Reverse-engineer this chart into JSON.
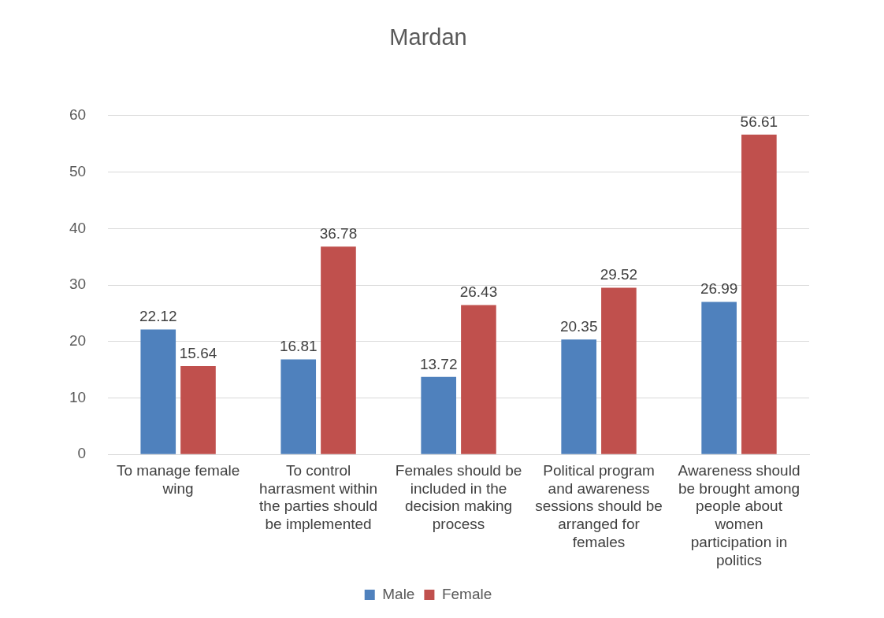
{
  "chart_data": {
    "type": "bar",
    "title": "Mardan",
    "categories": [
      "To manage female wing",
      "To control harrasment within the parties should be implemented",
      "Females should be included in the decision making process",
      "Political program and awareness sessions should be arranged for females",
      "Awareness should be brought among people about women participation in politics"
    ],
    "series": [
      {
        "name": "Male",
        "color": "#4f81bd",
        "values": [
          22.12,
          16.81,
          13.72,
          20.35,
          26.99
        ]
      },
      {
        "name": "Female",
        "color": "#c0504d",
        "values": [
          15.64,
          36.78,
          26.43,
          29.52,
          56.61
        ]
      }
    ],
    "ylim": [
      0,
      60
    ],
    "yticks": [
      0,
      10,
      20,
      30,
      40,
      50,
      60
    ],
    "grid": "y",
    "legend": "bottom",
    "data_labels": true
  }
}
